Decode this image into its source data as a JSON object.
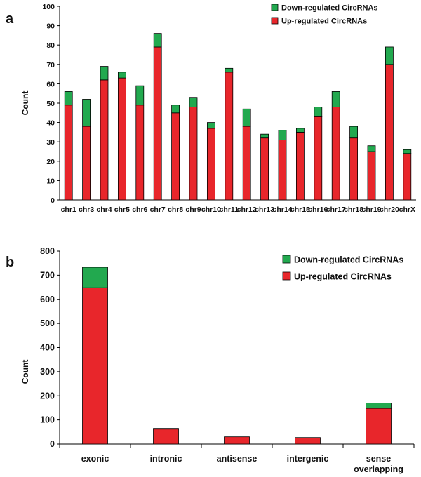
{
  "chart_data": [
    {
      "panel": "a",
      "type": "bar",
      "stacked": true,
      "ylabel": "Count",
      "ylim": [
        0,
        100
      ],
      "yticks": [
        0,
        10,
        20,
        30,
        40,
        50,
        60,
        70,
        80,
        90,
        100
      ],
      "categories": [
        "chr1",
        "chr3",
        "chr4",
        "chr5",
        "chr6",
        "chr7",
        "chr8",
        "chr9",
        "chr10",
        "chr11",
        "chr12",
        "chr13",
        "chr14",
        "chr15",
        "chr16",
        "chr17",
        "chr18",
        "chr19",
        "chr20",
        "chrX"
      ],
      "series": [
        {
          "name": "Up-regulated CircRNAs",
          "color": "#e8262b",
          "values": [
            49,
            38,
            62,
            63,
            49,
            79,
            45,
            48,
            37,
            66,
            38,
            32,
            31,
            35,
            43,
            48,
            32,
            25,
            70,
            24
          ]
        },
        {
          "name": "Down-regulated CircRNAs",
          "color": "#22a94f",
          "values": [
            7,
            14,
            7,
            3,
            10,
            7,
            4,
            5,
            3,
            2,
            9,
            2,
            5,
            2,
            5,
            8,
            6,
            3,
            9,
            2
          ]
        }
      ],
      "legend": [
        "Down-regulated CircRNAs",
        "Up-regulated CircRNAs"
      ],
      "legend_position": "top-right"
    },
    {
      "panel": "b",
      "type": "bar",
      "stacked": true,
      "ylabel": "Count",
      "ylim": [
        0,
        800
      ],
      "yticks": [
        0,
        100,
        200,
        300,
        400,
        500,
        600,
        700,
        800
      ],
      "categories": [
        "exonic",
        "intronic",
        "antisense",
        "intergenic",
        "sense overlapping"
      ],
      "category_lines": [
        [
          "exonic"
        ],
        [
          "intronic"
        ],
        [
          "antisense"
        ],
        [
          "intergenic"
        ],
        [
          "sense",
          "overlapping"
        ]
      ],
      "series": [
        {
          "name": "Up-regulated CircRNAs",
          "color": "#e8262b",
          "values": [
            648,
            62,
            30,
            27,
            148
          ]
        },
        {
          "name": "Down-regulated CircRNAs",
          "color": "#22a94f",
          "values": [
            85,
            3,
            0,
            0,
            22
          ]
        }
      ],
      "legend": [
        "Down-regulated CircRNAs",
        "Up-regulated CircRNAs"
      ],
      "legend_position": "top-right"
    }
  ]
}
